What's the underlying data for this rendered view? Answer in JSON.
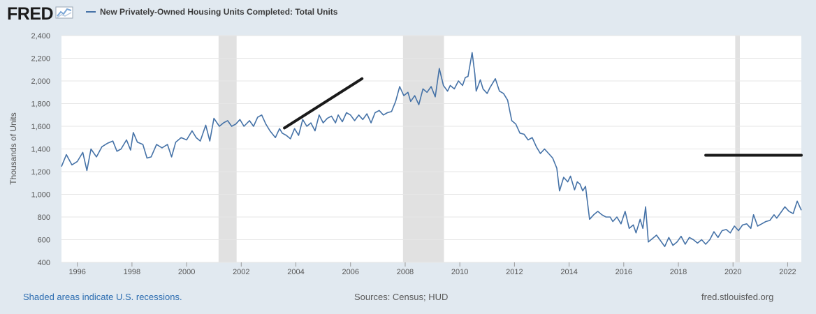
{
  "logo": {
    "text": "FRED",
    "icon": "fred-chart-logo-icon"
  },
  "series_title": "New Privately-Owned Housing Units Completed: Total Units",
  "footer": {
    "recessions_note": "Shaded areas indicate U.S. recessions.",
    "sources": "Sources: Census; HUD",
    "site": "fred.stlouisfed.org"
  },
  "colors": {
    "series": "#4572a7",
    "recession": "#e1e1e1",
    "trend": "#1a1a1a",
    "background": "#e1e9f0"
  },
  "chart_data": {
    "type": "line",
    "title": "",
    "ylabel": "Thousands of Units",
    "xlabel": "",
    "xlim": [
      1995.42,
      2022.5
    ],
    "ylim": [
      400,
      2400
    ],
    "yticks": [
      400,
      600,
      800,
      1000,
      1200,
      1400,
      1600,
      1800,
      2000,
      2200,
      2400
    ],
    "ytick_labels": [
      "400",
      "600",
      "800",
      "1,000",
      "1,200",
      "1,400",
      "1,600",
      "1,800",
      "2,000",
      "2,200",
      "2,400"
    ],
    "xticks": [
      1996,
      1998,
      2000,
      2002,
      2004,
      2006,
      2008,
      2010,
      2012,
      2014,
      2016,
      2018,
      2020,
      2022
    ],
    "xtick_labels": [
      "1996",
      "1998",
      "2000",
      "2002",
      "2004",
      "2006",
      "2008",
      "2010",
      "2012",
      "2014",
      "2016",
      "2018",
      "2020",
      "2022"
    ],
    "grid": "horizontal",
    "recessions": [
      [
        2001.17,
        2001.83
      ],
      [
        2007.92,
        2009.42
      ],
      [
        2020.08,
        2020.25
      ]
    ],
    "series": [
      {
        "name": "New Privately-Owned Housing Units Completed: Total Units",
        "points": [
          [
            1995.42,
            1245
          ],
          [
            1995.6,
            1350
          ],
          [
            1995.8,
            1260
          ],
          [
            1996.0,
            1290
          ],
          [
            1996.2,
            1370
          ],
          [
            1996.35,
            1210
          ],
          [
            1996.5,
            1400
          ],
          [
            1996.7,
            1330
          ],
          [
            1996.9,
            1420
          ],
          [
            1997.1,
            1450
          ],
          [
            1997.3,
            1470
          ],
          [
            1997.45,
            1380
          ],
          [
            1997.6,
            1400
          ],
          [
            1997.8,
            1480
          ],
          [
            1997.95,
            1390
          ],
          [
            1998.05,
            1545
          ],
          [
            1998.2,
            1460
          ],
          [
            1998.4,
            1440
          ],
          [
            1998.55,
            1320
          ],
          [
            1998.7,
            1330
          ],
          [
            1998.9,
            1440
          ],
          [
            1999.1,
            1410
          ],
          [
            1999.3,
            1440
          ],
          [
            1999.45,
            1330
          ],
          [
            1999.6,
            1460
          ],
          [
            1999.8,
            1500
          ],
          [
            2000.0,
            1480
          ],
          [
            2000.2,
            1560
          ],
          [
            2000.35,
            1500
          ],
          [
            2000.5,
            1470
          ],
          [
            2000.7,
            1610
          ],
          [
            2000.85,
            1470
          ],
          [
            2001.0,
            1670
          ],
          [
            2001.2,
            1600
          ],
          [
            2001.35,
            1630
          ],
          [
            2001.5,
            1650
          ],
          [
            2001.65,
            1600
          ],
          [
            2001.8,
            1620
          ],
          [
            2001.95,
            1660
          ],
          [
            2002.1,
            1600
          ],
          [
            2002.3,
            1650
          ],
          [
            2002.45,
            1600
          ],
          [
            2002.6,
            1680
          ],
          [
            2002.75,
            1700
          ],
          [
            2002.9,
            1620
          ],
          [
            2003.05,
            1560
          ],
          [
            2003.25,
            1500
          ],
          [
            2003.4,
            1580
          ],
          [
            2003.5,
            1540
          ],
          [
            2003.65,
            1520
          ],
          [
            2003.8,
            1490
          ],
          [
            2003.95,
            1580
          ],
          [
            2004.1,
            1520
          ],
          [
            2004.25,
            1660
          ],
          [
            2004.4,
            1600
          ],
          [
            2004.55,
            1630
          ],
          [
            2004.7,
            1560
          ],
          [
            2004.85,
            1700
          ],
          [
            2005.0,
            1630
          ],
          [
            2005.15,
            1670
          ],
          [
            2005.3,
            1690
          ],
          [
            2005.45,
            1630
          ],
          [
            2005.55,
            1700
          ],
          [
            2005.7,
            1640
          ],
          [
            2005.85,
            1720
          ],
          [
            2006.0,
            1700
          ],
          [
            2006.15,
            1650
          ],
          [
            2006.3,
            1700
          ],
          [
            2006.45,
            1660
          ],
          [
            2006.6,
            1710
          ],
          [
            2006.75,
            1630
          ],
          [
            2006.9,
            1720
          ],
          [
            2007.05,
            1740
          ],
          [
            2007.2,
            1700
          ],
          [
            2007.35,
            1720
          ],
          [
            2007.5,
            1730
          ],
          [
            2007.65,
            1820
          ],
          [
            2007.8,
            1950
          ],
          [
            2007.95,
            1870
          ],
          [
            2008.1,
            1900
          ],
          [
            2008.2,
            1820
          ],
          [
            2008.35,
            1870
          ],
          [
            2008.5,
            1790
          ],
          [
            2008.65,
            1930
          ],
          [
            2008.8,
            1900
          ],
          [
            2008.95,
            1950
          ],
          [
            2009.1,
            1860
          ],
          [
            2009.25,
            2110
          ],
          [
            2009.4,
            1960
          ],
          [
            2009.55,
            1910
          ],
          [
            2009.65,
            1960
          ],
          [
            2009.8,
            1930
          ],
          [
            2009.95,
            2000
          ],
          [
            2010.1,
            1960
          ],
          [
            2010.2,
            2030
          ],
          [
            2010.3,
            2040
          ],
          [
            2010.45,
            2250
          ],
          [
            2010.55,
            2060
          ],
          [
            2010.6,
            1910
          ],
          [
            2010.75,
            2010
          ],
          [
            2010.85,
            1930
          ],
          [
            2011.0,
            1890
          ],
          [
            2011.1,
            1940
          ],
          [
            2011.3,
            2020
          ],
          [
            2011.45,
            1910
          ],
          [
            2011.6,
            1890
          ],
          [
            2011.75,
            1830
          ],
          [
            2011.9,
            1650
          ],
          [
            2012.05,
            1620
          ],
          [
            2012.2,
            1540
          ],
          [
            2012.35,
            1530
          ],
          [
            2012.5,
            1480
          ],
          [
            2012.65,
            1500
          ],
          [
            2012.8,
            1420
          ],
          [
            2012.95,
            1360
          ],
          [
            2013.1,
            1400
          ],
          [
            2013.25,
            1360
          ],
          [
            2013.4,
            1320
          ],
          [
            2013.55,
            1230
          ],
          [
            2013.65,
            1030
          ],
          [
            2013.8,
            1150
          ],
          [
            2013.95,
            1110
          ],
          [
            2014.05,
            1160
          ],
          [
            2014.2,
            1040
          ],
          [
            2014.3,
            1110
          ],
          [
            2014.4,
            1090
          ],
          [
            2014.5,
            1030
          ],
          [
            2014.6,
            1070
          ],
          [
            2014.75,
            780
          ],
          [
            2014.9,
            820
          ],
          [
            2015.05,
            850
          ],
          [
            2015.2,
            820
          ],
          [
            2015.35,
            800
          ],
          [
            2015.5,
            800
          ],
          [
            2015.6,
            760
          ],
          [
            2015.75,
            800
          ],
          [
            2015.9,
            740
          ],
          [
            2016.05,
            850
          ],
          [
            2016.2,
            700
          ],
          [
            2016.35,
            730
          ],
          [
            2016.45,
            660
          ],
          [
            2016.6,
            780
          ],
          [
            2016.7,
            700
          ],
          [
            2016.8,
            890
          ],
          [
            2016.9,
            580
          ],
          [
            2017.05,
            610
          ],
          [
            2017.2,
            640
          ],
          [
            2017.35,
            590
          ],
          [
            2017.5,
            540
          ],
          [
            2017.65,
            620
          ],
          [
            2017.8,
            550
          ],
          [
            2017.95,
            580
          ],
          [
            2018.1,
            630
          ],
          [
            2018.25,
            560
          ],
          [
            2018.4,
            620
          ],
          [
            2018.55,
            600
          ],
          [
            2018.7,
            570
          ],
          [
            2018.85,
            600
          ],
          [
            2019.0,
            560
          ],
          [
            2019.15,
            600
          ],
          [
            2019.3,
            670
          ],
          [
            2019.45,
            620
          ],
          [
            2019.6,
            680
          ],
          [
            2019.75,
            690
          ],
          [
            2019.9,
            660
          ],
          [
            2020.05,
            720
          ],
          [
            2020.2,
            680
          ],
          [
            2020.35,
            730
          ],
          [
            2020.5,
            740
          ],
          [
            2020.65,
            700
          ],
          [
            2020.75,
            820
          ],
          [
            2020.9,
            720
          ],
          [
            2021.05,
            740
          ],
          [
            2021.2,
            760
          ],
          [
            2021.35,
            770
          ],
          [
            2021.5,
            820
          ],
          [
            2021.6,
            790
          ],
          [
            2021.75,
            840
          ],
          [
            2021.9,
            890
          ],
          [
            2022.05,
            850
          ],
          [
            2022.2,
            830
          ],
          [
            2022.35,
            940
          ],
          [
            2022.5,
            860
          ]
        ]
      }
    ],
    "trend_lines": [
      {
        "from": [
          2003.58,
          1585
        ],
        "to": [
          2006.42,
          2020
        ]
      },
      {
        "from": [
          2019.0,
          1345
        ],
        "to": [
          2022.5,
          1345
        ]
      }
    ]
  }
}
